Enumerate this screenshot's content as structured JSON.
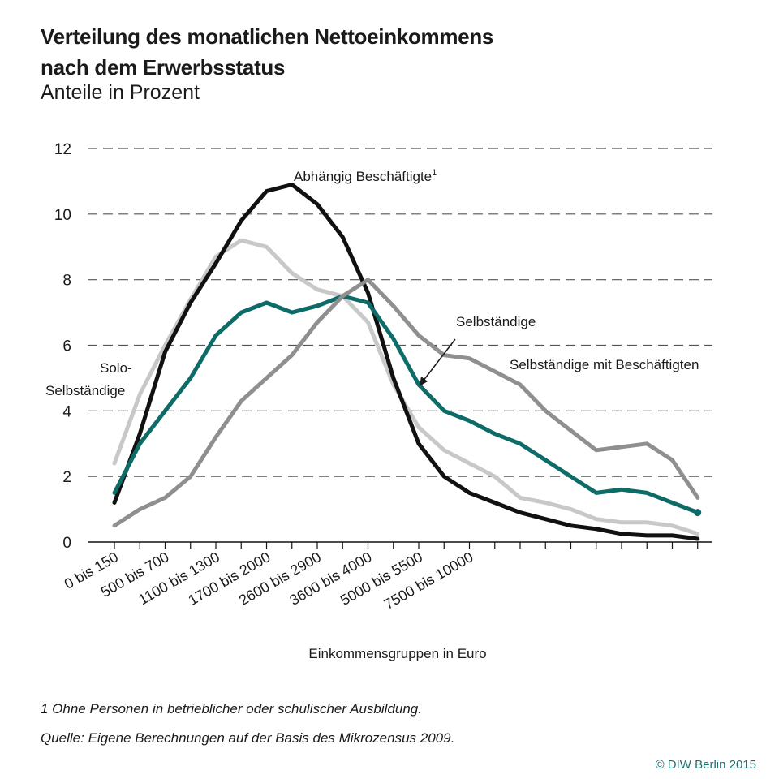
{
  "title_line1": "Verteilung des monatlichen Nettoeinkommens",
  "title_line2": "nach dem Erwerbsstatus",
  "subtitle": "Anteile in Prozent",
  "footnote1": "1  Ohne Personen in betrieblicher oder schulischer Ausbildung.",
  "source": "Quelle: Eigene Berechnungen auf der Basis des Mikrozensus 2009.",
  "copyright": "© DIW Berlin 2015",
  "chart_data": {
    "type": "line",
    "xlabel": "Einkommensgruppen in Euro",
    "ylabel": "",
    "ylim": [
      0,
      12
    ],
    "yticks": [
      0,
      2,
      4,
      6,
      8,
      10,
      12
    ],
    "grid": "horizontal-dashed",
    "xtick_labels": [
      "0 bis 150",
      "500 bis 700",
      "1100 bis 1300",
      "1700 bis 2000",
      "2600 bis 2900",
      "3600 bis 4000",
      "5000 bis 5500",
      "7500 bis 10000"
    ],
    "xtick_positions": [
      0,
      2,
      4,
      6,
      8,
      10,
      12,
      14
    ],
    "x": [
      0,
      1,
      2,
      3,
      4,
      5,
      6,
      7,
      8,
      9,
      10,
      11,
      12,
      13,
      14,
      15,
      16,
      17,
      18,
      19,
      20,
      21,
      22,
      23
    ],
    "series": [
      {
        "name": "Solo-Selbständige",
        "color": "#c8c8c8",
        "values": [
          2.4,
          4.5,
          6.0,
          7.4,
          8.7,
          9.2,
          9.0,
          8.2,
          7.7,
          7.5,
          6.7,
          4.8,
          3.5,
          2.8,
          2.4,
          2.0,
          1.35,
          1.2,
          1.0,
          0.7,
          0.6,
          0.6,
          0.5,
          0.25
        ]
      },
      {
        "name": "Abhängig Beschäftigte",
        "name_suffix": "1",
        "color": "#111111",
        "values": [
          1.2,
          3.3,
          5.8,
          7.3,
          8.5,
          9.8,
          10.7,
          10.9,
          10.3,
          9.3,
          7.6,
          5.0,
          3.0,
          2.0,
          1.5,
          1.2,
          0.9,
          0.7,
          0.5,
          0.4,
          0.25,
          0.2,
          0.2,
          0.1
        ]
      },
      {
        "name": "Selbständige",
        "color": "#0d6c68",
        "values": [
          1.5,
          3.0,
          4.0,
          5.0,
          6.3,
          7.0,
          7.3,
          7.0,
          7.2,
          7.5,
          7.3,
          6.2,
          4.8,
          4.0,
          3.7,
          3.3,
          3.0,
          2.5,
          2.0,
          1.5,
          1.6,
          1.5,
          1.2,
          0.9
        ]
      },
      {
        "name": "Selbständige mit Beschäftigten",
        "color": "#8f8f8f",
        "values": [
          0.5,
          1.0,
          1.35,
          2.0,
          3.2,
          4.3,
          5.0,
          5.7,
          6.7,
          7.5,
          8.0,
          7.2,
          6.3,
          5.7,
          5.6,
          5.2,
          4.8,
          4.0,
          3.4,
          2.8,
          2.9,
          3.0,
          2.5,
          1.35
        ]
      }
    ],
    "annotations": {
      "solo_line1": "Solo-",
      "solo_line2": "Selbständige",
      "abhaengig": "Abhängig Beschäftigte",
      "abhaengig_sup": "1",
      "selbst": "Selbständige",
      "selbst_mit": "Selbständige mit Beschäftigten"
    }
  }
}
